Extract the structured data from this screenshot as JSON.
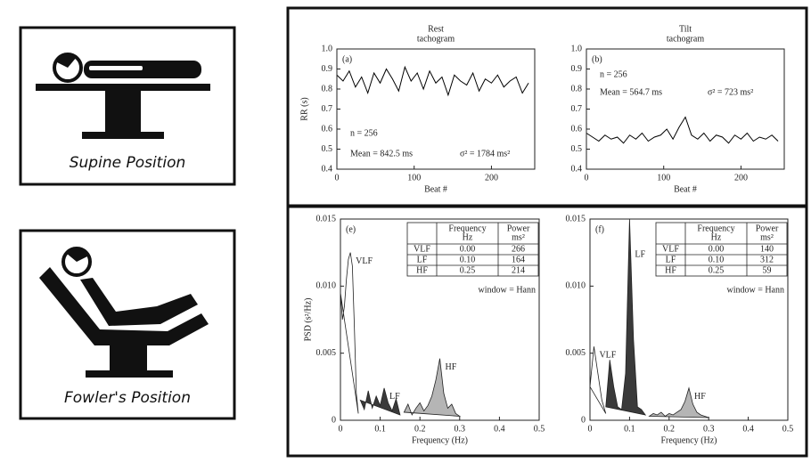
{
  "captions": [
    "Supine Position",
    "Fowler's Position"
  ],
  "chart_data": [
    {
      "type": "line",
      "panel": "(a)",
      "title": "Rest",
      "subtitle": "tachogram",
      "xlabel": "Beat #",
      "ylabel": "RR (s)",
      "x": [
        0,
        8,
        16,
        24,
        32,
        40,
        48,
        56,
        64,
        72,
        80,
        88,
        96,
        104,
        112,
        120,
        128,
        136,
        144,
        152,
        160,
        168,
        176,
        184,
        192,
        200,
        208,
        216,
        224,
        232,
        240,
        248
      ],
      "values": [
        0.87,
        0.84,
        0.89,
        0.81,
        0.86,
        0.78,
        0.88,
        0.83,
        0.9,
        0.85,
        0.79,
        0.91,
        0.84,
        0.88,
        0.8,
        0.89,
        0.83,
        0.86,
        0.77,
        0.87,
        0.84,
        0.82,
        0.88,
        0.79,
        0.85,
        0.83,
        0.87,
        0.81,
        0.84,
        0.86,
        0.78,
        0.83
      ],
      "color": "#000000",
      "xlim": [
        0,
        256
      ],
      "ylim": [
        0.4,
        1
      ],
      "xticks": [
        0,
        100,
        200
      ],
      "yticks": [
        0.4,
        0.5,
        0.6,
        0.7,
        0.8,
        0.9,
        {
          "value": 1,
          "label": "1.0"
        }
      ],
      "n": "n = 256",
      "mean": "Mean = 842.5 ms",
      "variance": "σ² = 1784 ms²"
    },
    {
      "type": "line",
      "panel": "(b)",
      "title": "Tilt",
      "subtitle": "tachogram",
      "xlabel": "Beat #",
      "x": [
        0,
        8,
        16,
        24,
        32,
        40,
        48,
        56,
        64,
        72,
        80,
        88,
        96,
        104,
        112,
        120,
        128,
        136,
        144,
        152,
        160,
        168,
        176,
        184,
        192,
        200,
        208,
        216,
        224,
        232,
        240,
        248
      ],
      "values": [
        0.58,
        0.56,
        0.54,
        0.57,
        0.55,
        0.56,
        0.53,
        0.57,
        0.55,
        0.58,
        0.54,
        0.56,
        0.57,
        0.6,
        0.55,
        0.61,
        0.66,
        0.57,
        0.55,
        0.58,
        0.54,
        0.57,
        0.56,
        0.53,
        0.57,
        0.55,
        0.58,
        0.54,
        0.56,
        0.55,
        0.57,
        0.54
      ],
      "color": "#000000",
      "xlim": [
        0,
        256
      ],
      "ylim": [
        0.4,
        1
      ],
      "xticks": [
        0,
        100,
        200
      ],
      "yticks": [
        0.4,
        0.5,
        0.6,
        0.7,
        0.8,
        0.9,
        {
          "value": 1,
          "label": "1.0"
        }
      ],
      "n": "n = 256",
      "mean": "Mean = 564.7 ms",
      "variance": "σ² = 723 ms²"
    },
    {
      "type": "area",
      "panel": "(e)",
      "xlabel": "Frequency (Hz)",
      "ylabel": "PSD (s²/Hz)",
      "series": [
        {
          "name": "VLF",
          "color": "#ffffff",
          "x": [
            0,
            0.005,
            0.01,
            0.015,
            0.02,
            0.025,
            0.03,
            0.035,
            0.04,
            0.045
          ],
          "values": [
            0.0095,
            0.0075,
            0.0085,
            0.0105,
            0.012,
            0.0125,
            0.0115,
            0.007,
            0.002,
            0.0005
          ]
        },
        {
          "name": "LF",
          "color": "#3a3a3a",
          "x": [
            0.05,
            0.06,
            0.07,
            0.08,
            0.09,
            0.1,
            0.11,
            0.12,
            0.13,
            0.14,
            0.15
          ],
          "values": [
            0.0015,
            0.0008,
            0.0022,
            0.0009,
            0.0018,
            0.0011,
            0.0024,
            0.0013,
            0.0007,
            0.0016,
            0.0004
          ]
        },
        {
          "name": "HF",
          "color": "#b5b5b5",
          "x": [
            0.16,
            0.17,
            0.18,
            0.19,
            0.2,
            0.21,
            0.22,
            0.23,
            0.24,
            0.25,
            0.26,
            0.27,
            0.28,
            0.29,
            0.3
          ],
          "values": [
            0.0006,
            0.0012,
            0.0004,
            0.0009,
            0.0013,
            0.0007,
            0.0011,
            0.0018,
            0.003,
            0.0046,
            0.002,
            0.0009,
            0.0012,
            0.0005,
            0.0003
          ]
        }
      ],
      "xlim": [
        0,
        0.5
      ],
      "ylim": [
        0,
        0.015
      ],
      "xticks": [
        0,
        0.1,
        0.2,
        0.3,
        0.4,
        0.5
      ],
      "yticks": [
        0,
        0.005,
        {
          "value": 0.01,
          "label": "0.010"
        },
        0.015
      ],
      "table": {
        "header": [
          {
            "top": "Frequency",
            "unit": "Hz"
          },
          {
            "top": "Power",
            "unit": "ms²"
          }
        ],
        "rows": [
          [
            "VLF",
            "0.00",
            "266"
          ],
          [
            "LF",
            "0.10",
            "164"
          ],
          [
            "HF",
            "0.25",
            "214"
          ]
        ]
      },
      "note": "window = Hann"
    },
    {
      "type": "area",
      "panel": "(f)",
      "xlabel": "Frequency (Hz)",
      "series": [
        {
          "name": "VLF",
          "color": "#ffffff",
          "x": [
            0,
            0.01,
            0.02,
            0.03,
            0.04
          ],
          "values": [
            0.0025,
            0.0055,
            0.0035,
            0.0015,
            0.0005
          ]
        },
        {
          "name": "LF",
          "color": "#3a3a3a",
          "x": [
            0.04,
            0.05,
            0.06,
            0.07,
            0.08,
            0.09,
            0.1,
            0.11,
            0.12,
            0.13,
            0.14
          ],
          "values": [
            0.001,
            0.0045,
            0.0025,
            0.001,
            0.0008,
            0.0035,
            0.015,
            0.006,
            0.001,
            0.0008,
            0.0004
          ]
        },
        {
          "name": "HF",
          "color": "#b5b5b5",
          "x": [
            0.15,
            0.16,
            0.17,
            0.18,
            0.19,
            0.2,
            0.21,
            0.22,
            0.23,
            0.24,
            0.25,
            0.26,
            0.27,
            0.28,
            0.29,
            0.3
          ],
          "values": [
            0.0003,
            0.0005,
            0.0004,
            0.0006,
            0.0003,
            0.0005,
            0.0004,
            0.0006,
            0.0008,
            0.0014,
            0.0024,
            0.0012,
            0.0006,
            0.0004,
            0.0003,
            0.0002
          ]
        }
      ],
      "xlim": [
        0,
        0.5
      ],
      "ylim": [
        0,
        0.015
      ],
      "xticks": [
        0,
        0.1,
        0.2,
        0.3,
        0.4,
        0.5
      ],
      "yticks": [
        0,
        0.005,
        {
          "value": 0.01,
          "label": "0.010"
        },
        0.015
      ],
      "table": {
        "header": [
          {
            "top": "Frequency",
            "unit": "Hz"
          },
          {
            "top": "Power",
            "unit": "ms²"
          }
        ],
        "rows": [
          [
            "VLF",
            "0.00",
            "140"
          ],
          [
            "LF",
            "0.10",
            "312"
          ],
          [
            "HF",
            "0.25",
            "59"
          ]
        ]
      },
      "note": "window = Hann"
    }
  ]
}
